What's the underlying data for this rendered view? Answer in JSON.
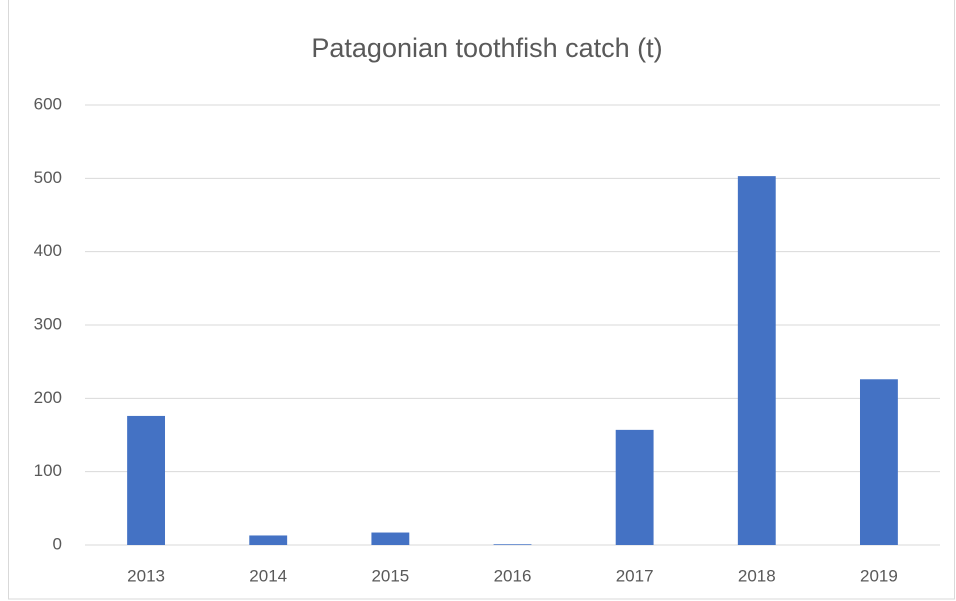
{
  "chart_data": {
    "type": "bar",
    "title": "Patagonian toothfish catch (t)",
    "categories": [
      "2013",
      "2014",
      "2015",
      "2016",
      "2017",
      "2018",
      "2019"
    ],
    "values": [
      176,
      13,
      17,
      1,
      157,
      503,
      226
    ],
    "color": "#4472c4",
    "ylim": [
      0,
      600
    ],
    "yticks": [
      0,
      100,
      200,
      300,
      400,
      500,
      600
    ],
    "grid": true
  }
}
